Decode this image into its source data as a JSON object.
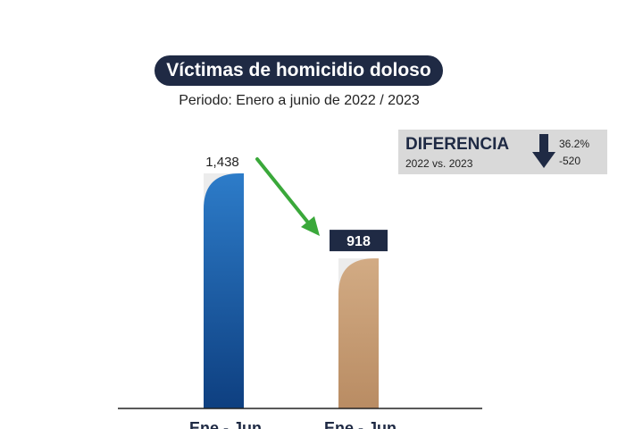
{
  "title": "Víctimas de homicidio doloso",
  "subtitle": "Periodo: Enero a junio de 2022 / 2023",
  "difference": {
    "title": "DIFERENCIA",
    "comparison": "2022 vs. 2023",
    "percent": "36.2%",
    "absolute": "-520",
    "arrow_icon": "arrow-down-icon"
  },
  "colors": {
    "bar_2022": "#1f63b0",
    "bar_2022_dark": "#0e3f80",
    "bar_2023": "#c49a73",
    "bar_2023_light": "#d2ab84",
    "title_bg": "#1f2a44",
    "trend_arrow": "#3aa83a"
  },
  "chart_data": {
    "type": "bar",
    "categories": [
      "Ene - Jun",
      "Ene - Jun"
    ],
    "values": [
      1438,
      918
    ],
    "value_labels": [
      "1,438",
      "918"
    ],
    "title": "Víctimas de homicidio doloso",
    "subtitle": "Periodo: Enero a junio de 2022 / 2023",
    "xlabel": "",
    "ylabel": "",
    "ylim": [
      0,
      1438
    ],
    "grid": false,
    "legend": "none"
  }
}
